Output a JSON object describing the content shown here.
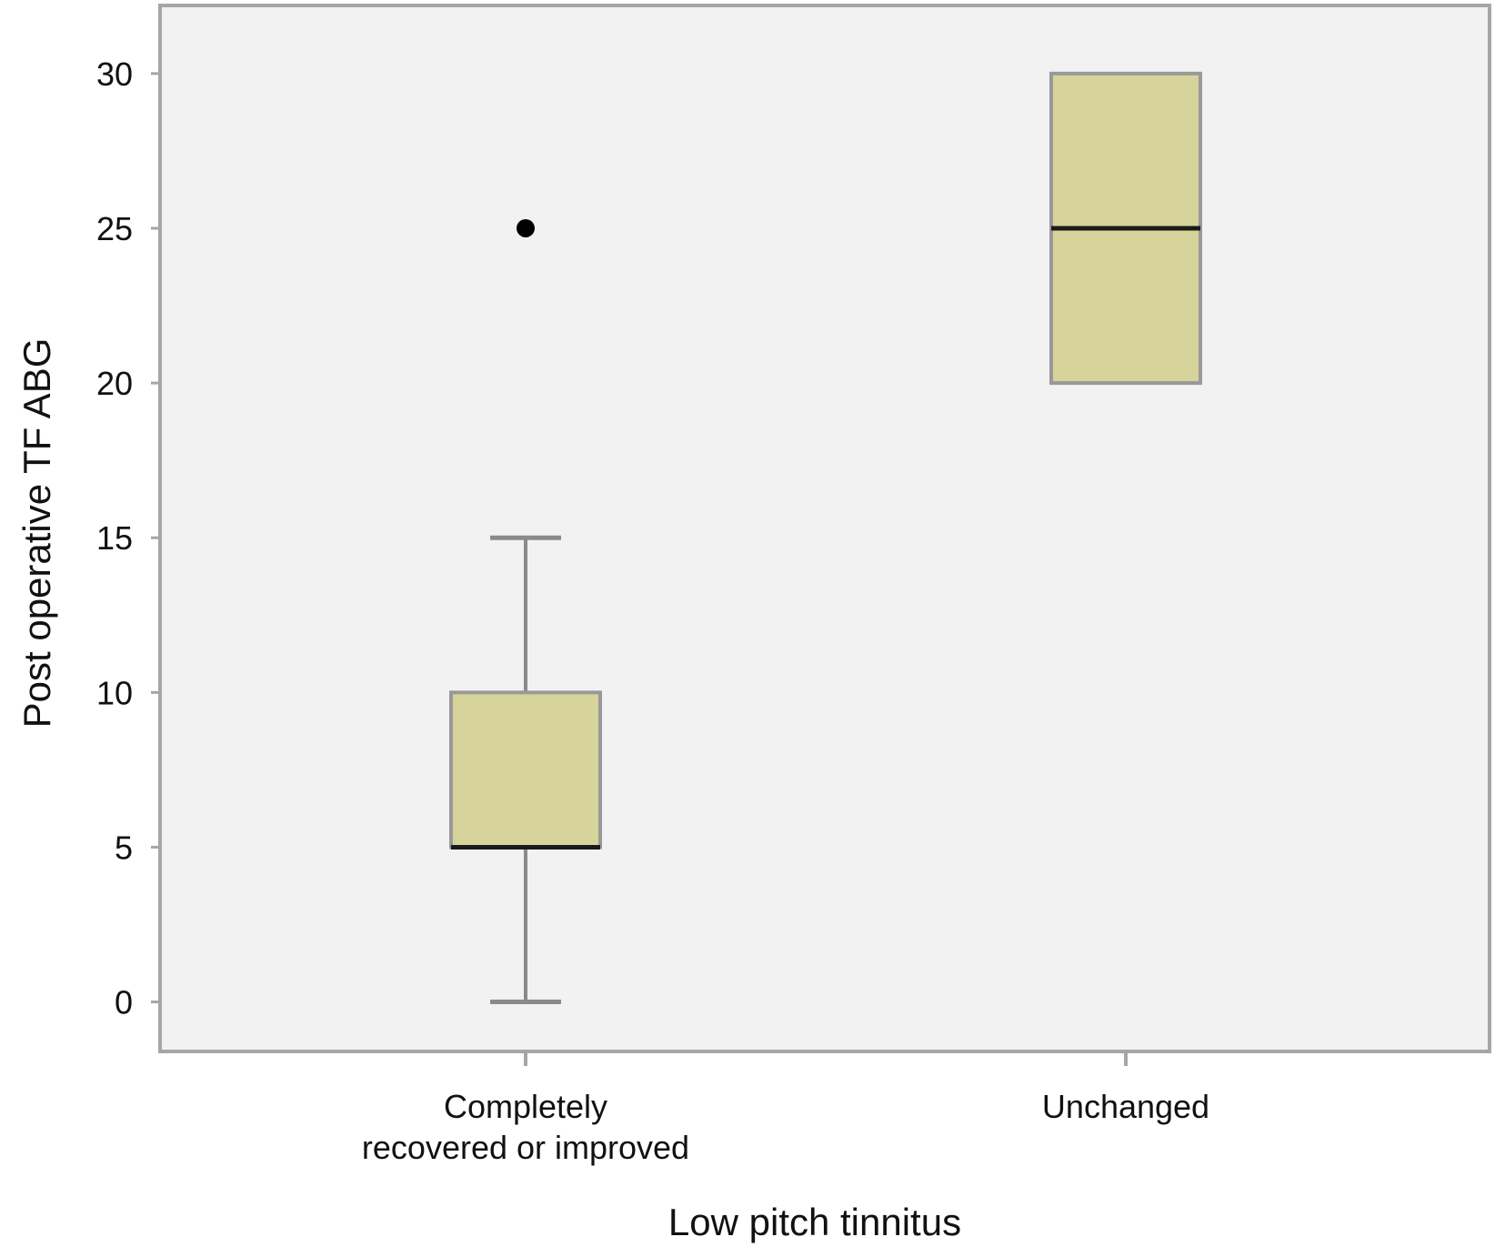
{
  "chart_data": {
    "type": "boxplot",
    "xlabel": "Low pitch tinnitus",
    "ylabel": "Post operative TF ABG",
    "ylim": [
      -1.6,
      32.2
    ],
    "yticks": [
      0,
      5,
      10,
      15,
      20,
      25,
      30
    ],
    "grid": false,
    "categories": [
      [
        "Completely",
        "recovered or improved"
      ],
      [
        "Unchanged"
      ]
    ],
    "series": [
      {
        "whisker_low": 0,
        "q1": 5,
        "median": 5,
        "q3": 10,
        "whisker_high": 15,
        "outliers": [
          25
        ]
      },
      {
        "whisker_low": 20,
        "q1": 20,
        "median": 25,
        "q3": 30,
        "whisker_high": 30,
        "outliers": []
      }
    ],
    "colors": {
      "plot_background": "#f2f2f2",
      "frame": "#a6a6a6",
      "box_fill": "#d6d39b",
      "box_stroke": "#999999",
      "median": "#1a1a1a",
      "whisker": "#8a8a8a",
      "outlier": "#000000"
    }
  }
}
